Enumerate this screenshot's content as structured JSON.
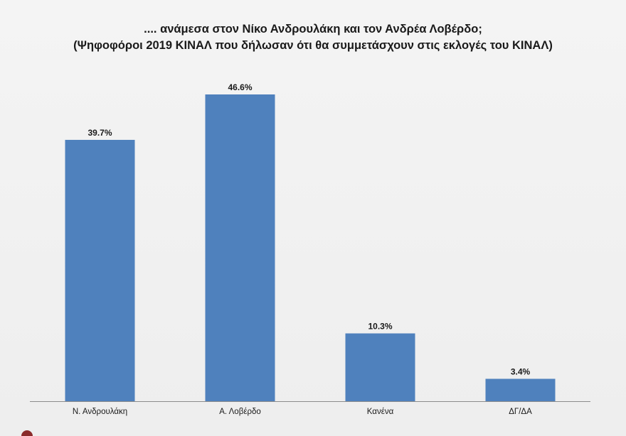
{
  "chart_data": {
    "type": "bar",
    "title": ".... ανάμεσα στον Νίκο Ανδρουλάκη και τον Ανδρέα Λοβέρδο;",
    "subtitle": "(Ψηφοφόροι 2019 ΚΙΝΑΛ που δήλωσαν ότι θα συμμετάσχουν στις εκλογές του ΚΙΝΑΛ)",
    "categories": [
      "Ν. Ανδρουλάκη",
      "Α. Λοβέρδο",
      "Κανένα",
      "ΔΓ/ΔΑ"
    ],
    "values": [
      39.7,
      46.6,
      10.3,
      3.4
    ],
    "data_labels": [
      "39.7%",
      "46.6%",
      "10.3%",
      "3.4%"
    ],
    "xlabel": "",
    "ylabel": "",
    "ylim": [
      0,
      50
    ],
    "grid": false,
    "legend": "none",
    "bar_color": "#4f81bd"
  }
}
